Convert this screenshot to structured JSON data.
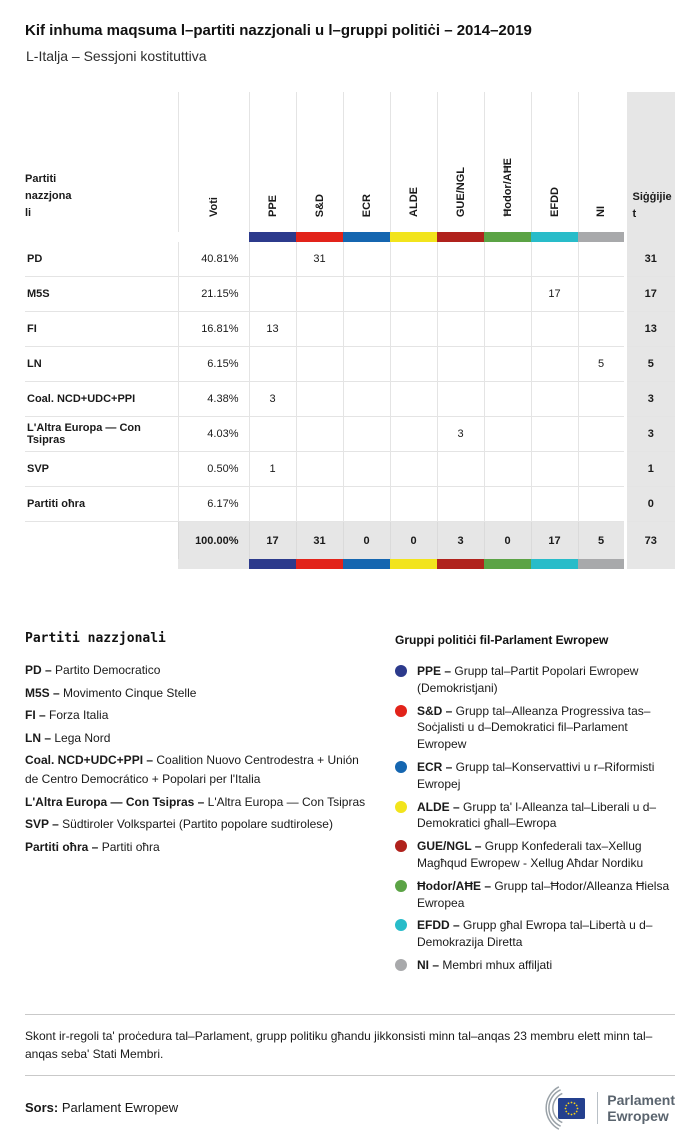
{
  "page": {
    "title": "Kif inhuma maqsuma l–partiti nazzjonali u l–gruppi politiċi – 2014–2019",
    "subtitle": "L-Italja – Sessjoni kostituttiva"
  },
  "chart_data": {
    "type": "table",
    "title": "Kif inhuma maqsuma l–partiti nazzjonali u l–gruppi politiċi – 2014–2019",
    "subtitle": "L-Italja – Sessjoni kostituttiva",
    "corner_label": "Partiti nazzjonali",
    "voti_label": "Voti",
    "seats_label": "Siġġijiet",
    "group_columns": [
      {
        "id": "PPE",
        "color": "#2c3a8c"
      },
      {
        "id": "S&D",
        "color": "#e2231a"
      },
      {
        "id": "ECR",
        "color": "#1566b0"
      },
      {
        "id": "ALDE",
        "color": "#f2e41c"
      },
      {
        "id": "GUE/NGL",
        "color": "#b0221c"
      },
      {
        "id": "Ħodor/AĦE",
        "color": "#5ba345"
      },
      {
        "id": "EFDD",
        "color": "#28bcc9"
      },
      {
        "id": "NI",
        "color": "#a8a9ab"
      }
    ],
    "rows": [
      {
        "party": "PD",
        "votes": "40.81%",
        "group_seats": [
          null,
          31,
          null,
          null,
          null,
          null,
          null,
          null
        ],
        "seats": 31
      },
      {
        "party": "M5S",
        "votes": "21.15%",
        "group_seats": [
          null,
          null,
          null,
          null,
          null,
          null,
          17,
          null
        ],
        "seats": 17
      },
      {
        "party": "FI",
        "votes": "16.81%",
        "group_seats": [
          13,
          null,
          null,
          null,
          null,
          null,
          null,
          null
        ],
        "seats": 13
      },
      {
        "party": "LN",
        "votes": "6.15%",
        "group_seats": [
          null,
          null,
          null,
          null,
          null,
          null,
          null,
          5
        ],
        "seats": 5
      },
      {
        "party": "Coal. NCD+UDC+PPI",
        "votes": "4.38%",
        "group_seats": [
          3,
          null,
          null,
          null,
          null,
          null,
          null,
          null
        ],
        "seats": 3
      },
      {
        "party": "L'Altra Europa — Con Tsipras",
        "votes": "4.03%",
        "group_seats": [
          null,
          null,
          null,
          null,
          3,
          null,
          null,
          null
        ],
        "seats": 3
      },
      {
        "party": "SVP",
        "votes": "0.50%",
        "group_seats": [
          1,
          null,
          null,
          null,
          null,
          null,
          null,
          null
        ],
        "seats": 1
      },
      {
        "party": "Partiti oħra",
        "votes": "6.17%",
        "group_seats": [
          null,
          null,
          null,
          null,
          null,
          null,
          null,
          null
        ],
        "seats": 0
      }
    ],
    "total": {
      "votes": "100.00%",
      "group_seats": [
        17,
        31,
        0,
        0,
        3,
        0,
        17,
        5
      ],
      "seats": 73
    }
  },
  "legend_left": {
    "title": "Partiti nazzjonali",
    "items": [
      {
        "abbr": "PD –",
        "text": "Partito Democratico"
      },
      {
        "abbr": "M5S –",
        "text": "Movimento Cinque Stelle"
      },
      {
        "abbr": "FI –",
        "text": "Forza Italia"
      },
      {
        "abbr": "LN –",
        "text": "Lega Nord"
      },
      {
        "abbr": "Coal. NCD+UDC+PPI –",
        "text": "Coalition Nuovo Centrodestra + Unión de Centro Democrático + Popolari per l'Italia"
      },
      {
        "abbr": "L'Altra Europa — Con Tsipras –",
        "text": "L'Altra Europa — Con Tsipras"
      },
      {
        "abbr": "SVP –",
        "text": "Südtiroler Volkspartei (Partito popolare sudtirolese)"
      },
      {
        "abbr": "Partiti oħra –",
        "text": "Partiti oħra"
      }
    ]
  },
  "legend_right": {
    "title": "Gruppi politiċi fil-Parlament Ewropew",
    "items": [
      {
        "id": "PPE",
        "abbr": "PPE –",
        "text": "Grupp tal–Partit Popolari Ewropew (Demokristjani)"
      },
      {
        "id": "S&D",
        "abbr": "S&D –",
        "text": "Grupp tal–Alleanza Progressiva tas–Soċjalisti u d–Demokratici fil–Parlament Ewropew"
      },
      {
        "id": "ECR",
        "abbr": "ECR –",
        "text": "Grupp tal–Konservattivi u r–Riformisti Ewropej"
      },
      {
        "id": "ALDE",
        "abbr": "ALDE –",
        "text": "Grupp ta' l-Alleanza tal–Liberali u d–Demokratici għall–Ewropa"
      },
      {
        "id": "GUE/NGL",
        "abbr": "GUE/NGL –",
        "text": "Grupp Konfederali tax–Xellug Magħqud Ewropew - Xellug Aħdar Nordiku"
      },
      {
        "id": "Ħodor/AĦE",
        "abbr": "Ħodor/AĦE –",
        "text": "Grupp tal–Ħodor/Alleanza Ħielsa Ewropea"
      },
      {
        "id": "EFDD",
        "abbr": "EFDD –",
        "text": "Grupp għal Ewropa tal–Libertà u d–Demokrazija Diretta"
      },
      {
        "id": "NI",
        "abbr": "NI –",
        "text": "Membri mhux affiljati"
      }
    ]
  },
  "footnote": "Skont ir-regoli ta' proċedura tal–Parlament, grupp politiku għandu jikkonsisti minn tal–anqas 23 membru elett minn tal–anqas seba' Stati Membri.",
  "source": {
    "label": "Sors:",
    "text": " Parlament Ewropew"
  },
  "logo": {
    "line1": "Parlament",
    "line2": "Ewropew"
  }
}
